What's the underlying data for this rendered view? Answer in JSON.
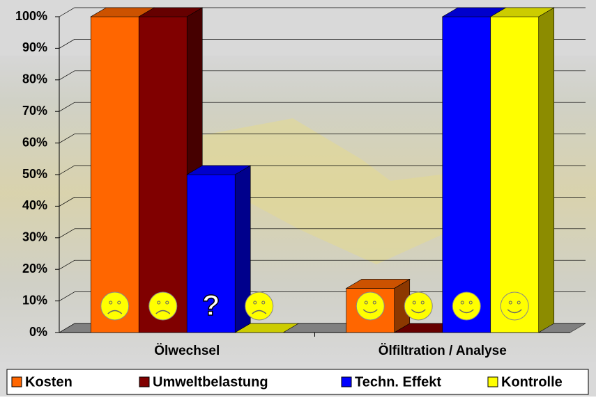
{
  "chart_data": {
    "type": "bar3d",
    "categories": [
      "Ölwechsel",
      "Ölfiltration / Analyse"
    ],
    "series": [
      {
        "name": "Kosten",
        "color": "#ff6600",
        "values": [
          100,
          14
        ]
      },
      {
        "name": "Umweltbelastung",
        "color": "#800000",
        "values": [
          100,
          0
        ]
      },
      {
        "name": "Techn. Effekt",
        "color": "#0000ff",
        "values": [
          50,
          100
        ]
      },
      {
        "name": "Kontrolle",
        "color": "#ffff00",
        "values": [
          0,
          100
        ]
      }
    ],
    "annotations": [
      "?"
    ],
    "ylim": [
      0,
      100
    ],
    "yticks": [
      {
        "value": 0,
        "label": "0%"
      },
      {
        "value": 10,
        "label": "10%"
      },
      {
        "value": 20,
        "label": "20%"
      },
      {
        "value": 30,
        "label": "30%"
      },
      {
        "value": 40,
        "label": "40%"
      },
      {
        "value": 50,
        "label": "50%"
      },
      {
        "value": 60,
        "label": "60%"
      },
      {
        "value": 70,
        "label": "70%"
      },
      {
        "value": 80,
        "label": "80%"
      },
      {
        "value": 90,
        "label": "90%"
      },
      {
        "value": 100,
        "label": "100%"
      }
    ],
    "grid": true,
    "legend": "bottom"
  }
}
